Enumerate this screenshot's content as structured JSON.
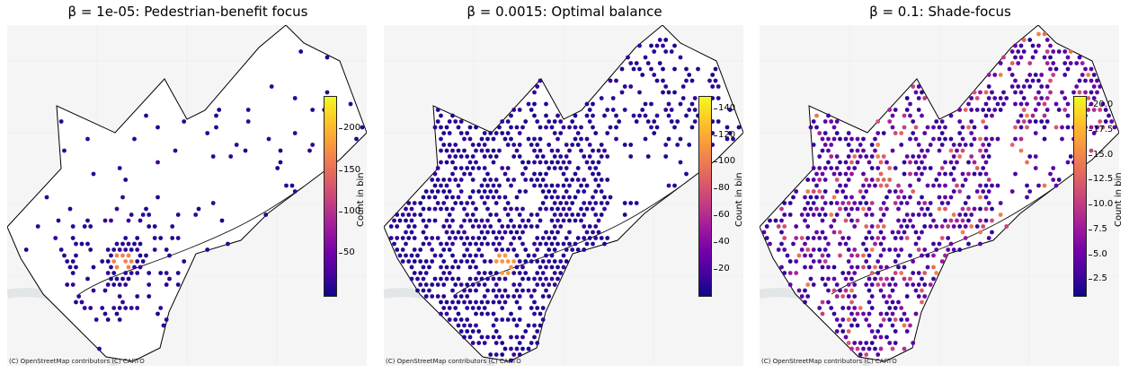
{
  "panels": [
    {
      "title": "β = 1e-05: Pedestrian-benefit focus",
      "attribution": "(C) OpenStreetMap contributors (C) CARTO",
      "colorbar": {
        "label": "Count in bin",
        "min": 1,
        "max": 240,
        "ticks": [
          "50",
          "100",
          "150",
          "200"
        ],
        "tick_values": [
          50,
          100,
          150,
          200
        ]
      },
      "distribution": "sparse",
      "hotspot_level": 0.7
    },
    {
      "title": "β = 0.0015: Optimal balance",
      "attribution": "(C) OpenStreetMap contributors (C) CARTO",
      "colorbar": {
        "label": "Count in bin",
        "min": 1,
        "max": 150,
        "ticks": [
          "20",
          "40",
          "60",
          "80",
          "100",
          "120",
          "140"
        ],
        "tick_values": [
          20,
          40,
          60,
          80,
          100,
          120,
          140
        ]
      },
      "distribution": "dense",
      "hotspot_level": 0.75
    },
    {
      "title": "β = 0.1: Shade-focus",
      "attribution": "(C) OpenStreetMap contributors (C) CARTO",
      "colorbar": {
        "label": "Count in bin",
        "min": 1,
        "max": 21,
        "ticks": [
          "2.5",
          "5.0",
          "7.5",
          "10.0",
          "12.5",
          "15.0",
          "17.5",
          "20.0"
        ],
        "tick_values": [
          2.5,
          5,
          7.5,
          10,
          12.5,
          15,
          17.5,
          20
        ]
      },
      "distribution": "varied",
      "hotspot_level": 0.6
    }
  ],
  "colormap": "plasma"
}
